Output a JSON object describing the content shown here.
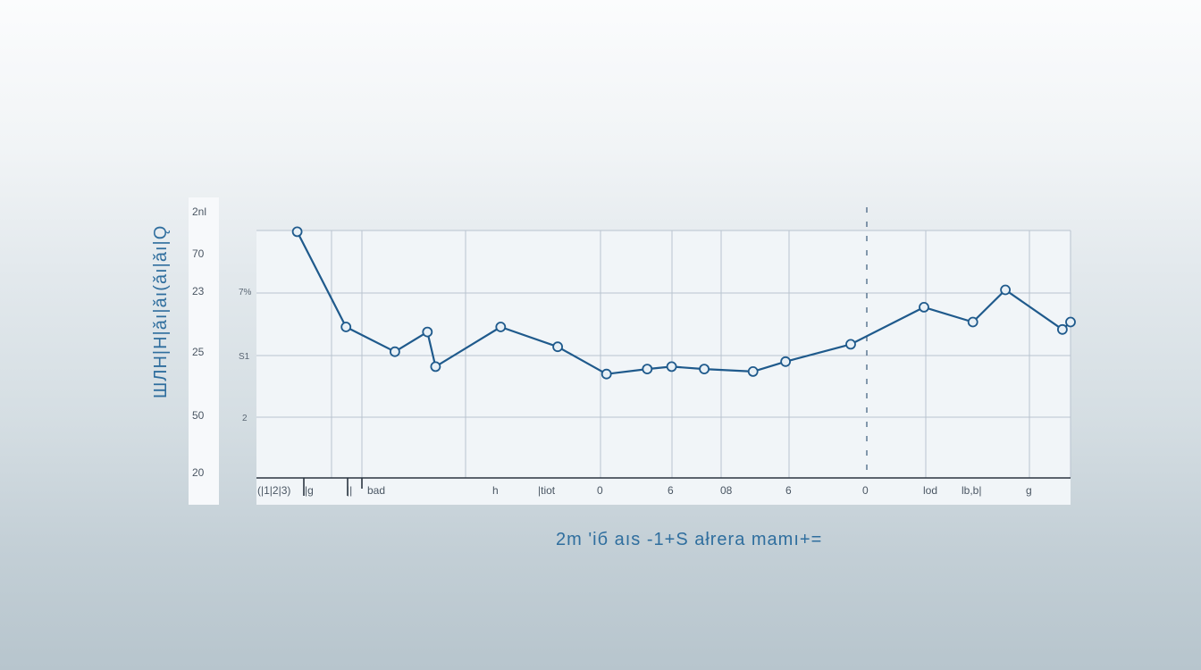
{
  "colors": {
    "series": "#1f5a8c",
    "axis_label": "#2f6e9e"
  },
  "chart_data": {
    "type": "line",
    "title": "",
    "xlabel": "2m 'iб aıs -1+S ałrera mamı+=",
    "ylabel": "ШЛН|Н|ǎı|ǎı(ǎı|ǎı|Ǫ",
    "x_tick_labels": [
      "(|1|2|3)",
      "|ɡ",
      "||",
      "bad",
      "h",
      "|tiot",
      "0",
      "6",
      "08",
      "6",
      "0",
      "lod",
      "lb,b|",
      "g"
    ],
    "y_tick_labels": [
      "2nl",
      "70",
      "23",
      "25",
      "50",
      "20"
    ],
    "inner_y_tick_labels": [
      "7%",
      "S1",
      "2"
    ],
    "ylim": [
      20,
      23
    ],
    "grid": true,
    "legend": "none",
    "series": [
      {
        "points": [
          [
            0.05,
            99.5
          ],
          [
            0.11,
            61
          ],
          [
            0.17,
            51
          ],
          [
            0.21,
            59
          ],
          [
            0.22,
            45
          ],
          [
            0.3,
            61
          ],
          [
            0.37,
            53
          ],
          [
            0.43,
            42
          ],
          [
            0.48,
            44
          ],
          [
            0.51,
            45
          ],
          [
            0.55,
            44
          ],
          [
            0.61,
            43
          ],
          [
            0.65,
            47
          ],
          [
            0.73,
            54
          ],
          [
            0.82,
            69
          ],
          [
            0.88,
            63
          ],
          [
            0.92,
            76
          ],
          [
            0.99,
            60
          ],
          [
            1.0,
            63
          ]
        ],
        "values_note_free": true
      }
    ]
  }
}
